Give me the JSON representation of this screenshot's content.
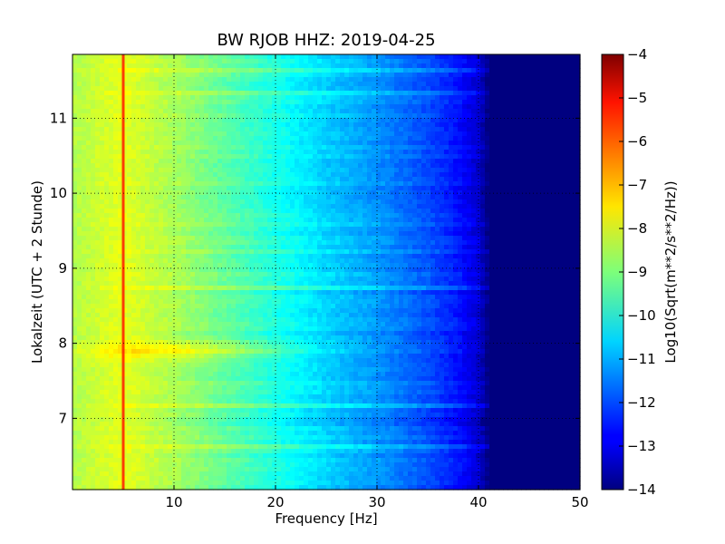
{
  "chart_data": {
    "type": "heatmap",
    "title": "BW RJOB HHZ: 2019-04-25",
    "xlabel": "Frequency [Hz]",
    "ylabel": "Lokalzeit (UTC + 2 Stunde)",
    "xlim": [
      0,
      50
    ],
    "ylim": [
      11.85,
      6.05
    ],
    "x_ticks": [
      10,
      20,
      30,
      40,
      50
    ],
    "y_ticks": [
      7,
      8,
      9,
      10,
      11
    ],
    "grid": true,
    "colormap": "jet",
    "colorbar": {
      "label": "Log10(Sqrt(m**2/s**2/Hz))",
      "range": [
        -14,
        -4
      ],
      "ticks": [
        -4,
        -5,
        -6,
        -7,
        -8,
        -9,
        -10,
        -11,
        -12,
        -13,
        -14
      ]
    },
    "profile": {
      "frequency_hz": [
        0,
        2,
        5,
        10,
        15,
        20,
        25,
        30,
        35,
        38,
        40,
        41,
        42,
        50
      ],
      "log_amplitude": [
        -8.5,
        -8.3,
        -8.0,
        -8.6,
        -9.3,
        -10.0,
        -10.7,
        -11.3,
        -12.0,
        -12.6,
        -13.2,
        -14.0,
        -14.0,
        -14.0
      ]
    },
    "features": {
      "spectral_line_hz": 5,
      "spectral_line_level": -5.5,
      "energy_burst_time": 7.9,
      "energy_burst_level": -7.8
    }
  }
}
